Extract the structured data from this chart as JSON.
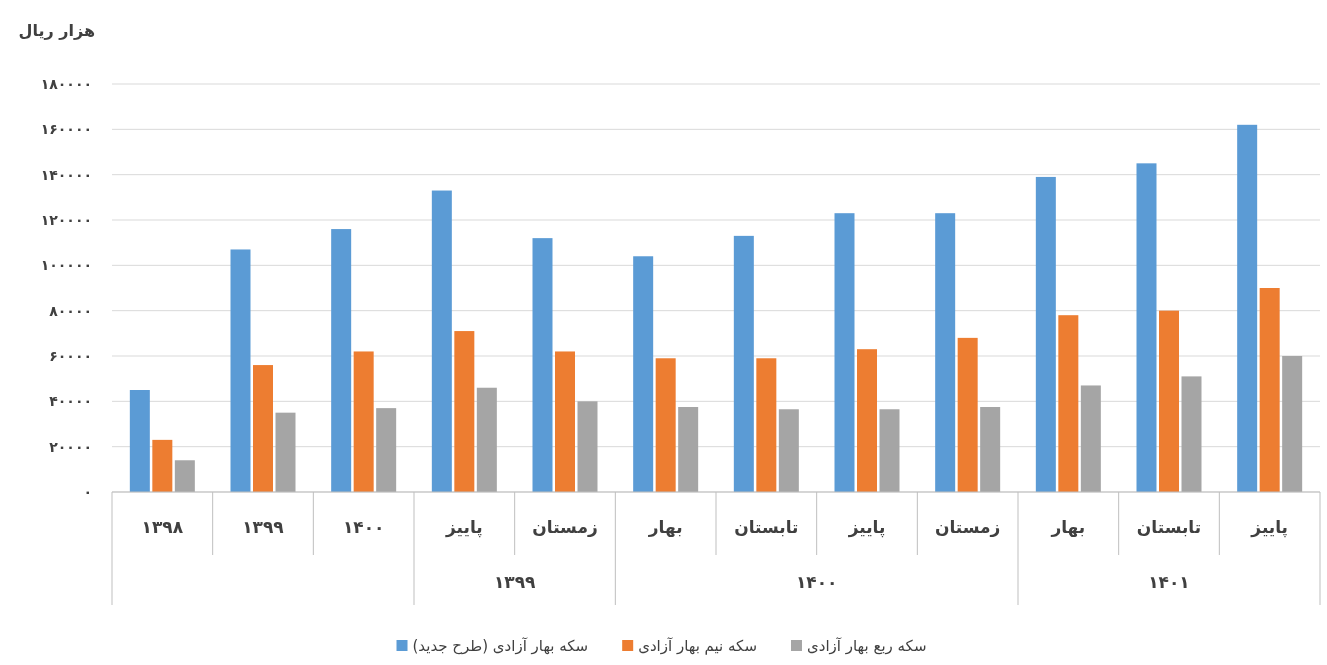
{
  "chart_data": {
    "type": "bar",
    "ylabel": "هزار ریال",
    "categories": [
      "۱۳۹۸",
      "۱۳۹۹",
      "۱۴۰۰",
      "پاییز",
      "زمستان",
      "بهار",
      "تابستان",
      "پاییز",
      "زمستان",
      "بهار",
      "تابستان",
      "پاییز"
    ],
    "series": [
      {
        "name": "سکه بهار آزادی (طرح جدید)",
        "color": "#5b9bd5",
        "values": [
          45000,
          107000,
          116000,
          133000,
          112000,
          104000,
          113000,
          123000,
          123000,
          139000,
          145000,
          162000
        ]
      },
      {
        "name": "سکه نیم بهار آزادی",
        "color": "#ed7d31",
        "values": [
          23000,
          56000,
          62000,
          71000,
          62000,
          59000,
          59000,
          63000,
          68000,
          78000,
          80000,
          90000
        ]
      },
      {
        "name": "سکه ربع بهار آزادی",
        "color": "#a5a5a5",
        "values": [
          14000,
          35000,
          37000,
          46000,
          40000,
          37500,
          36500,
          36500,
          37500,
          47000,
          51000,
          60000
        ]
      }
    ],
    "ylim": [
      0,
      180000
    ],
    "yticks": [
      {
        "value": 0,
        "label": "۰"
      },
      {
        "value": 20000,
        "label": "۲۰۰۰۰"
      },
      {
        "value": 40000,
        "label": "۴۰۰۰۰"
      },
      {
        "value": 60000,
        "label": "۶۰۰۰۰"
      },
      {
        "value": 80000,
        "label": "۸۰۰۰۰"
      },
      {
        "value": 100000,
        "label": "۱۰۰۰۰۰"
      },
      {
        "value": 120000,
        "label": "۱۲۰۰۰۰"
      },
      {
        "value": 140000,
        "label": "۱۴۰۰۰۰"
      },
      {
        "value": 160000,
        "label": "۱۶۰۰۰۰"
      },
      {
        "value": 180000,
        "label": "۱۸۰۰۰۰"
      }
    ],
    "annotations": [
      "۱۳۹۹",
      "۱۴۰۰",
      "۱۴۰۱"
    ],
    "grid": "y",
    "legend": "bottom"
  }
}
